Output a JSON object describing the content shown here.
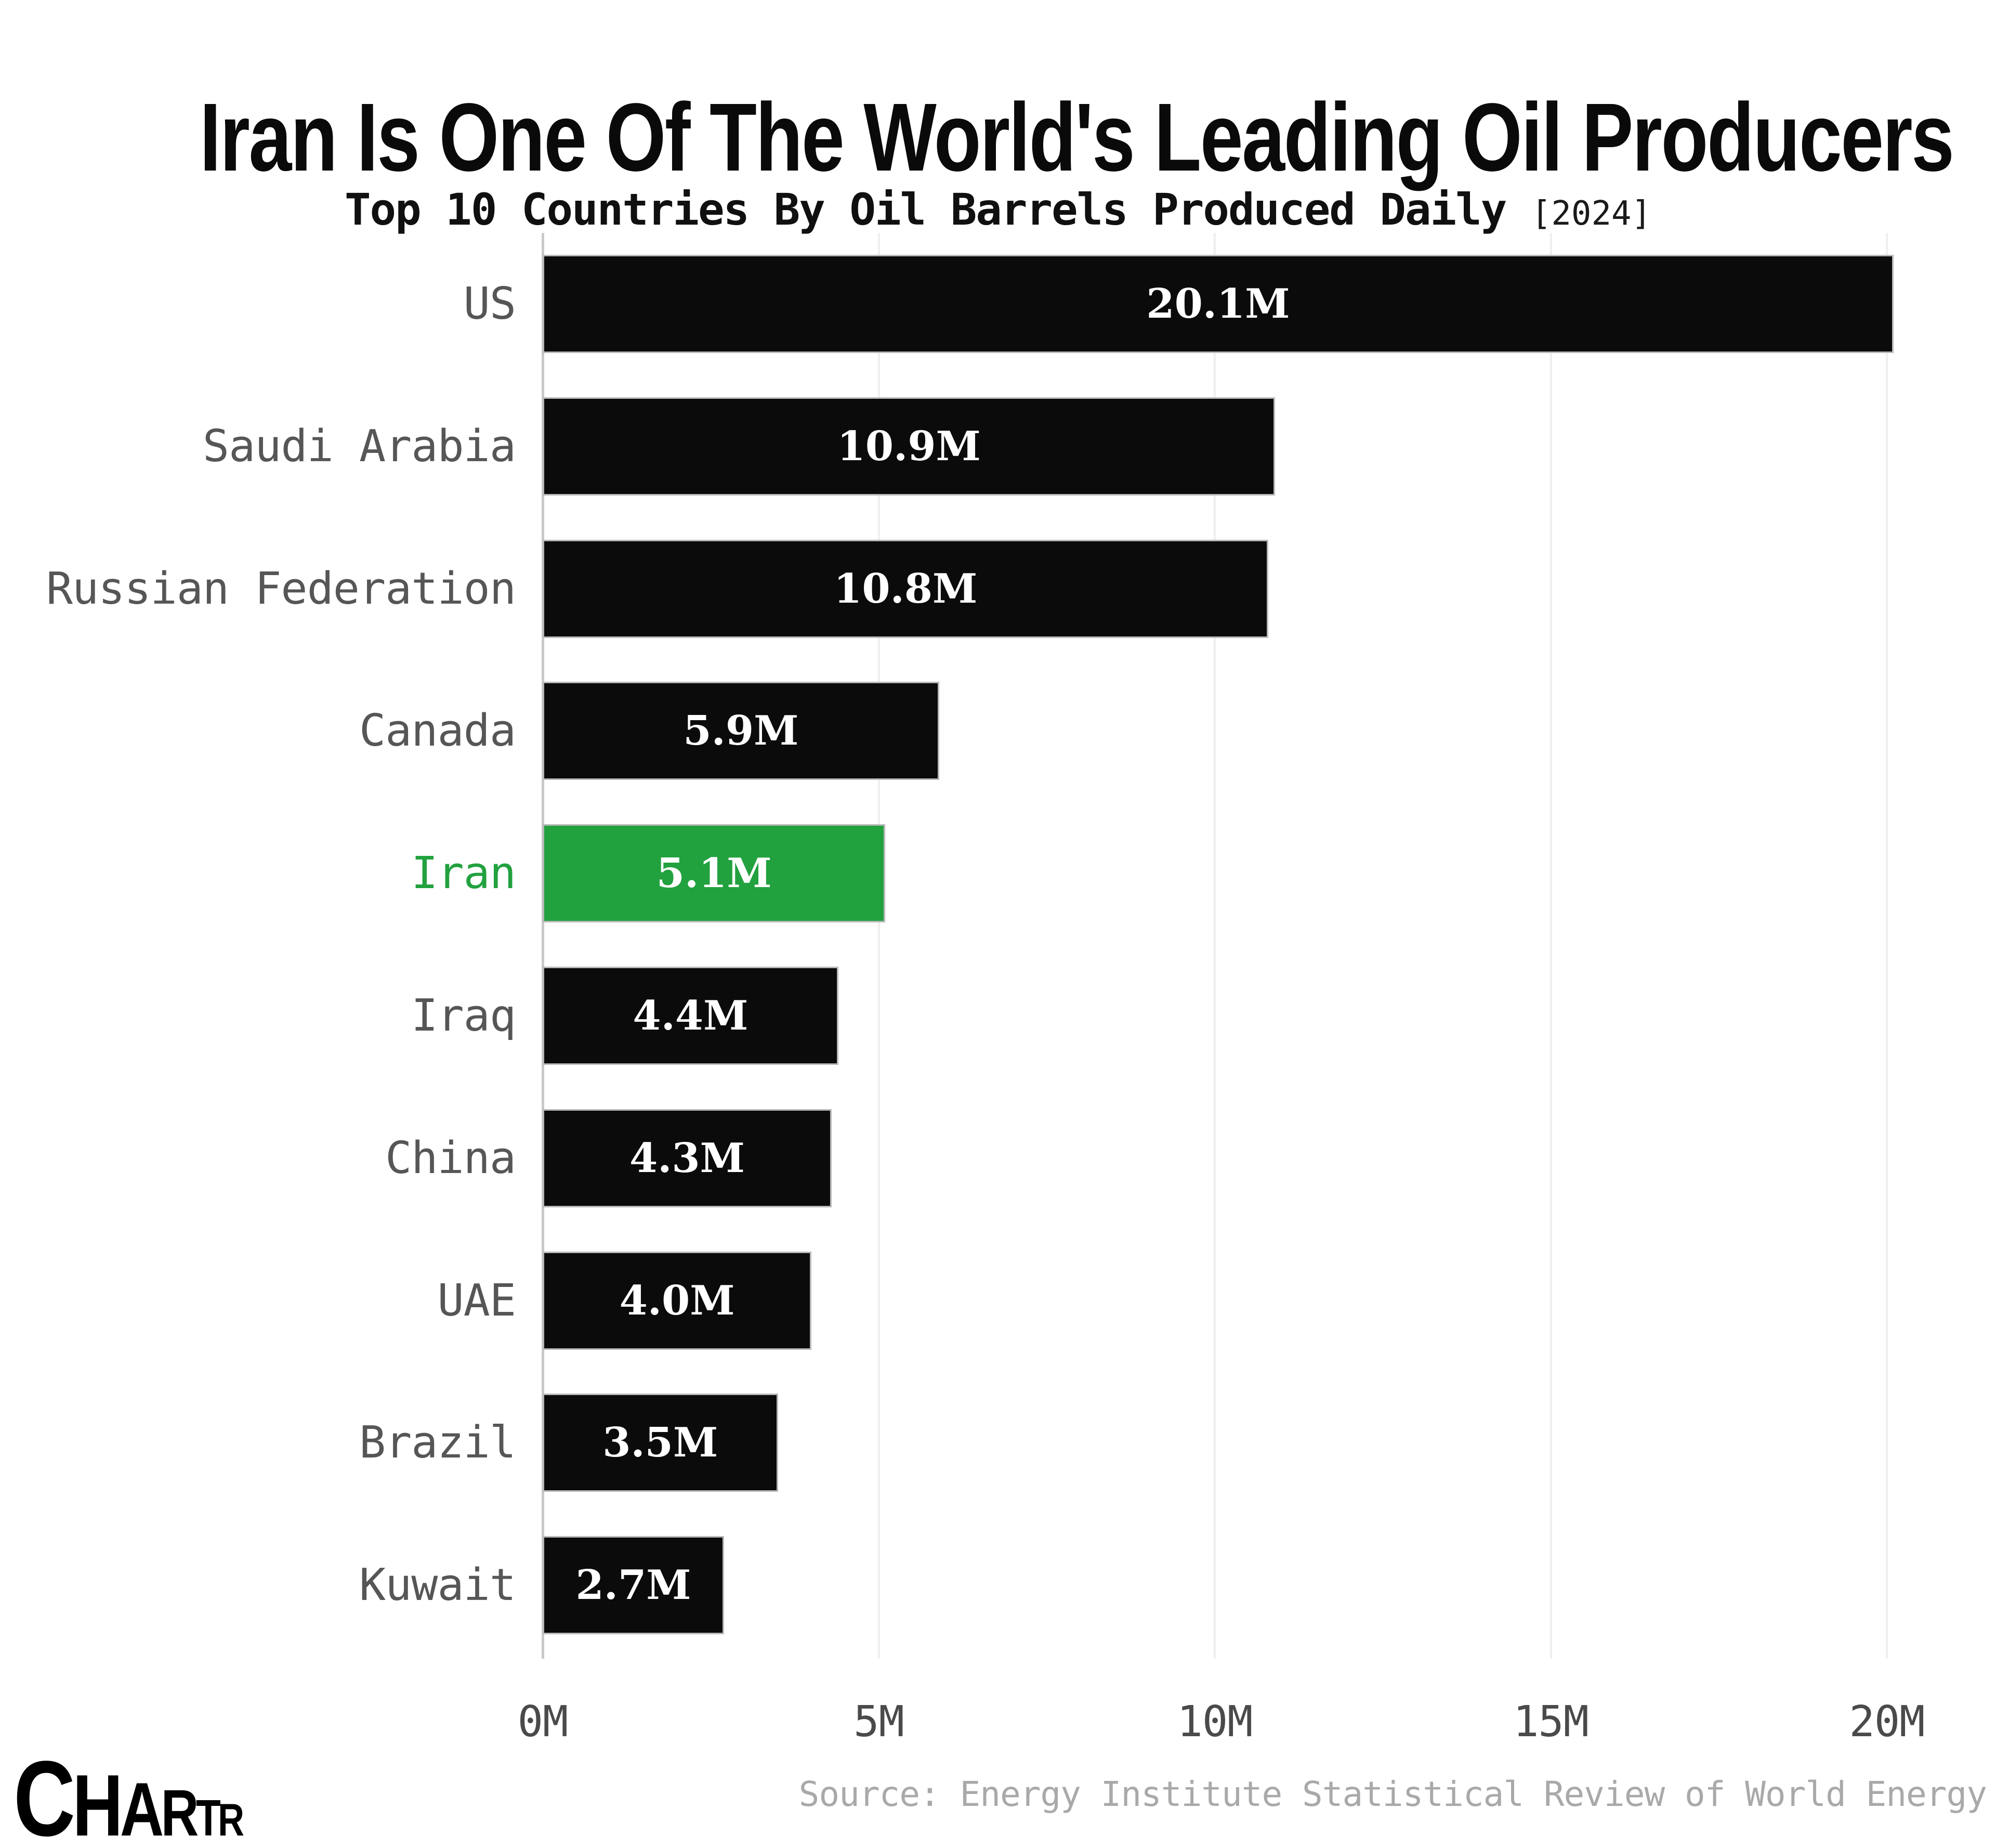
{
  "header": {
    "title": "Iran Is One Of The World's Leading Oil Producers",
    "subtitle": "Top 10 Countries By Oil Barrels Produced Daily",
    "subtitle_tag": "[2024]"
  },
  "footer": {
    "logo_letters": [
      "C",
      "H",
      "A",
      "R",
      "T",
      "R"
    ],
    "source": "Source: Energy Institute Statistical Review of World Energy"
  },
  "colors": {
    "bar": "#0b0b0b",
    "highlight": "#22a13f",
    "label": "#565656",
    "tick": "#4a4a4a",
    "grid": "#efefef",
    "axis": "#c9c9c9",
    "value_text": "#ffffff",
    "source_text": "#a9a9a9"
  },
  "chart_data": {
    "type": "bar",
    "orientation": "horizontal",
    "title": "Iran Is One Of The World's Leading Oil Producers",
    "subtitle": "Top 10 Countries By Oil Barrels Produced Daily [2024]",
    "categories": [
      "US",
      "Saudi Arabia",
      "Russian Federation",
      "Canada",
      "Iran",
      "Iraq",
      "China",
      "UAE",
      "Brazil",
      "Kuwait"
    ],
    "values": [
      20.1,
      10.9,
      10.8,
      5.9,
      5.1,
      4.4,
      4.3,
      4.0,
      3.5,
      2.7
    ],
    "value_labels": [
      "20.1M",
      "10.9M",
      "10.8M",
      "5.9M",
      "5.1M",
      "4.4M",
      "4.3M",
      "4.0M",
      "3.5M",
      "2.7M"
    ],
    "highlight_category": "Iran",
    "x_ticks": [
      {
        "label": "0M",
        "value": 0
      },
      {
        "label": "5M",
        "value": 5
      },
      {
        "label": "10M",
        "value": 10
      },
      {
        "label": "15M",
        "value": 15
      },
      {
        "label": "20M",
        "value": 20
      }
    ],
    "xlim": [
      0,
      20
    ],
    "grid": "vertical",
    "legend": false
  }
}
